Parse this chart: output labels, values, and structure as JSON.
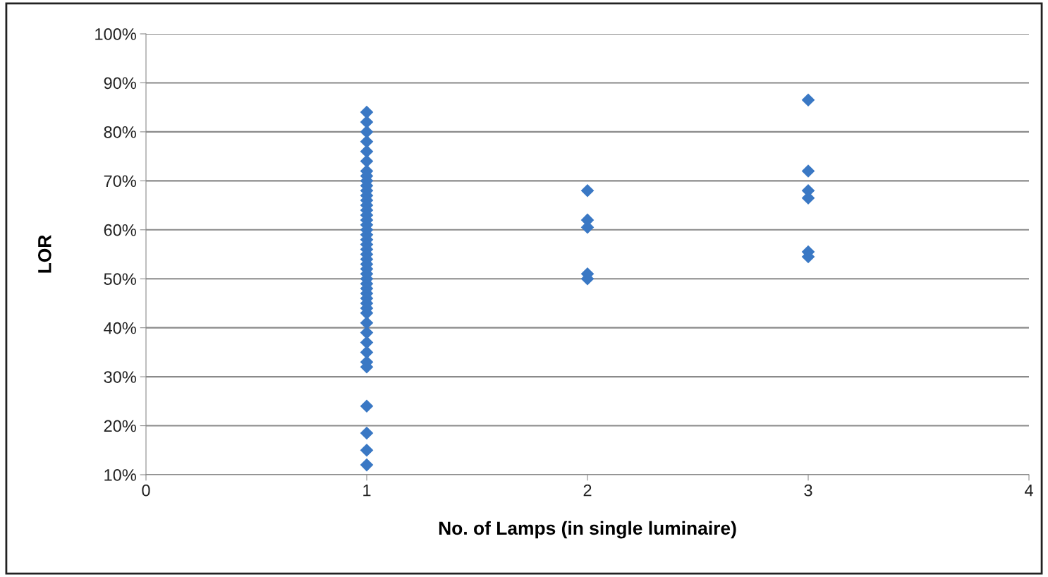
{
  "chart_data": {
    "type": "scatter",
    "xlabel": "No. of Lamps (in single luminaire)",
    "ylabel": "LOR",
    "series": [
      {
        "color": "#3a78c4",
        "x": [
          1,
          1,
          1,
          1,
          1,
          1,
          1,
          1,
          1,
          1,
          1,
          1,
          1,
          1,
          1,
          1,
          1,
          1,
          1,
          1,
          1,
          1,
          1,
          1,
          1,
          1,
          1,
          1,
          1,
          1,
          1,
          1,
          1,
          1,
          1,
          1,
          1,
          1,
          1,
          1,
          1,
          1,
          1,
          1,
          1,
          1
        ],
        "values": [
          84,
          82,
          80,
          78,
          76,
          74,
          72,
          71,
          70,
          69,
          68,
          67,
          66,
          65,
          64,
          63,
          62,
          61,
          60,
          59,
          58,
          57,
          56,
          55,
          54,
          53,
          52,
          51,
          50,
          49,
          48,
          47,
          46,
          45,
          44,
          43,
          41,
          39,
          37,
          35,
          33,
          32,
          24,
          18.5,
          15,
          12
        ]
      },
      {
        "color": "#3a78c4",
        "x": [
          2,
          2,
          2,
          2,
          2
        ],
        "values": [
          68,
          62,
          60.5,
          51,
          50
        ]
      },
      {
        "color": "#3a78c4",
        "x": [
          3,
          3,
          3,
          3,
          3,
          3
        ],
        "values": [
          86.5,
          72,
          68,
          66.5,
          55.5,
          54.5
        ]
      }
    ],
    "xlim": [
      0,
      4
    ],
    "xticks": [
      0,
      1,
      2,
      3,
      4
    ],
    "ylim": [
      10,
      100
    ],
    "yticks": [
      {
        "value": 10,
        "label": "10%"
      },
      {
        "value": 20,
        "label": "20%"
      },
      {
        "value": 30,
        "label": "30%"
      },
      {
        "value": 40,
        "label": "40%"
      },
      {
        "value": 50,
        "label": "50%"
      },
      {
        "value": 60,
        "label": "60%"
      },
      {
        "value": 70,
        "label": "70%"
      },
      {
        "value": 80,
        "label": "80%"
      },
      {
        "value": 90,
        "label": "90%"
      },
      {
        "value": 100,
        "label": "100%"
      }
    ],
    "grid": "y",
    "marker": "diamond"
  }
}
